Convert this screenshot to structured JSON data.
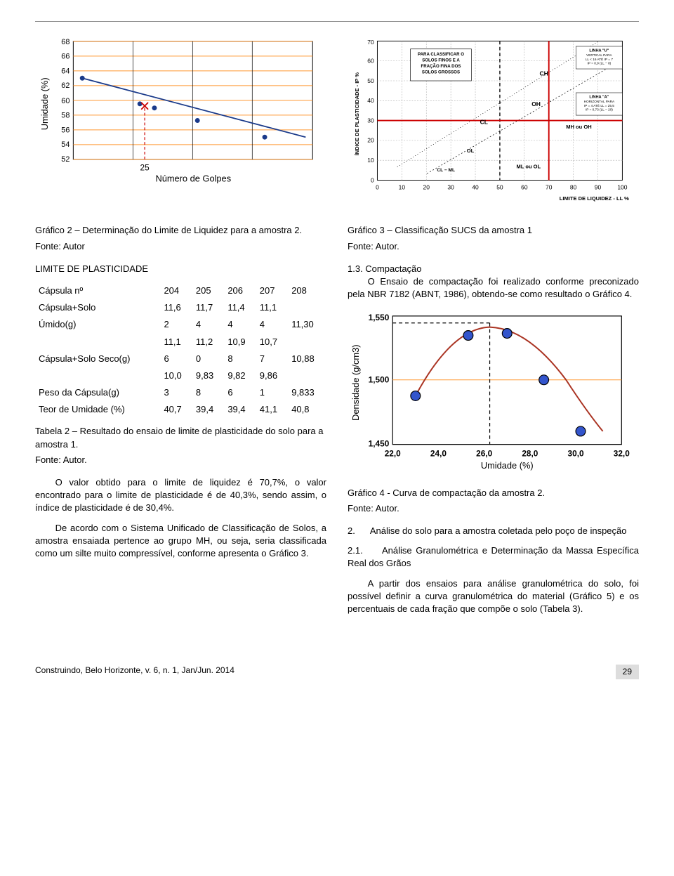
{
  "chart1": {
    "type": "scatter-line",
    "ylabel": "Umidade (%)",
    "xlabel": "Número de Golpes",
    "yticks": [
      52,
      54,
      56,
      58,
      60,
      62,
      64,
      66,
      68
    ],
    "xtick_label": "25",
    "ylim": [
      52,
      68
    ],
    "xlim": [
      10,
      60
    ],
    "points": [
      {
        "x": 12,
        "y": 63
      },
      {
        "x": 24,
        "y": 59.5
      },
      {
        "x": 27,
        "y": 59
      },
      {
        "x": 36,
        "y": 57.3
      },
      {
        "x": 50,
        "y": 55
      }
    ],
    "marker_x": 25,
    "marker_y": 59.3,
    "grid_color": "#ff9933",
    "point_color": "#1a3a8a",
    "line_color": "#1a3a8a",
    "marker_color": "#cc0000",
    "bg": "#ffffff"
  },
  "chart2": {
    "type": "plasticity-chart",
    "ylabel": "ÍNDICE DE PLASTICIDADE - IP %",
    "xlabel": "LIMITE DE LIQUIDEZ - LL %",
    "xlim": [
      0,
      100
    ],
    "ylim": [
      0,
      70
    ],
    "xticks": [
      0,
      10,
      20,
      30,
      40,
      50,
      60,
      70,
      80,
      90,
      100
    ],
    "yticks": [
      0,
      10,
      20,
      30,
      40,
      50,
      60,
      70
    ],
    "border_color": "#000000",
    "grid_dash": "2,2",
    "red_color": "#cc0000",
    "u_line": {
      "label": "LINHA \"U\"",
      "sub": "VERTICAL PARA\nLL < 16 ATÉ IP = 7\nIP = 0,9 (LL − 8)"
    },
    "a_line": {
      "label": "LINHA \"A\"",
      "sub": "HORIZONTAL PARA\nIP = 4 ATÉ LL = 25,5\nIP = 0,73 (LL − 20)"
    },
    "box_text": "PARA CLASSIFICAR O\nSOLOS FINOS E A\nFRAÇÃO FINA DOS\nSOLOS GROSSOS",
    "regions": {
      "CH": "CH",
      "CL": "CL",
      "OH": "OH",
      "OL": "OL",
      "ML_OL": "ML ou OL",
      "MH_OH": "MH ou OH",
      "CL_ML": "CL − ML"
    },
    "red_hline_y": 30,
    "red_vline_x": 70,
    "dash_vline_x": 50
  },
  "chart3": {
    "type": "compaction-curve",
    "ylabel": "Densidade (g/cm3)",
    "xlabel": "Umidade (%)",
    "xlim": [
      22,
      32
    ],
    "ylim": [
      1.45,
      1.55
    ],
    "xticks": [
      "22,0",
      "24,0",
      "26,0",
      "28,0",
      "30,0",
      "32,0"
    ],
    "yticks": [
      "1,450",
      "1,500",
      "1,550"
    ],
    "points": [
      {
        "x": 23.0,
        "y": 1.488
      },
      {
        "x": 25.3,
        "y": 1.535
      },
      {
        "x": 27.0,
        "y": 1.537
      },
      {
        "x": 28.6,
        "y": 1.5
      },
      {
        "x": 30.2,
        "y": 1.46
      }
    ],
    "dash_x": 26.2,
    "dash_y": 1.54,
    "grid_color": "#ff9933",
    "curve_color": "#aa3322",
    "point_fill": "#3355cc",
    "point_stroke": "#000000"
  },
  "table": {
    "title": "LIMITE DE PLASTICIDADE",
    "rows": [
      {
        "label": "Cápsula nº",
        "v": [
          "204",
          "205",
          "206",
          "207",
          "208"
        ]
      },
      {
        "label": "Cápsula+Solo",
        "v": [
          "11,6",
          "11,7",
          "11,4",
          "11,1",
          ""
        ]
      },
      {
        "label": "Úmido(g)",
        "v": [
          "2",
          "4",
          "4",
          "4",
          "11,30"
        ]
      },
      {
        "label": "",
        "v": [
          "11,1",
          "11,2",
          "10,9",
          "10,7",
          ""
        ]
      },
      {
        "label": "Cápsula+Solo Seco(g)",
        "v": [
          "6",
          "0",
          "8",
          "7",
          "10,88"
        ]
      },
      {
        "label": "",
        "v": [
          "10,0",
          "9,83",
          "9,82",
          "9,86",
          ""
        ]
      },
      {
        "label": "Peso da Cápsula(g)",
        "v": [
          "3",
          "8",
          "6",
          "1",
          "9,833"
        ]
      },
      {
        "label": "Teor de Umidade (%)",
        "v": [
          "40,7",
          "39,4",
          "39,4",
          "41,1",
          "40,8"
        ]
      }
    ]
  },
  "captions": {
    "g2": "Gráfico 2 – Determinação do Limite de Liquidez para a amostra 2.",
    "g2_fonte": "Fonte: Autor",
    "t2": "Tabela 2 – Resultado do ensaio de limite de plasticidade do solo para a amostra 1.",
    "t2_fonte": "Fonte: Autor.",
    "g3": "Gráfico 3 – Classificação SUCS da amostra 1",
    "g3_fonte": "Fonte: Autor.",
    "g4": "Gráfico 4 - Curva de compactação da amostra 2.",
    "g4_fonte": "Fonte: Autor."
  },
  "paras": {
    "p1": "O valor obtido para o limite de liquidez é 70,7%, o valor encontrado para o limite de plasticidade é de 40,3%, sendo assim, o índice de plasticidade é de 30,4%.",
    "p2": "De acordo com o Sistema Unificado de Classificação de Solos, a amostra ensaiada pertence ao grupo MH, ou seja, seria classificada como um silte muito compressível, conforme apresenta o Gráfico 3.",
    "s13_head": "1.3. Compactação",
    "s13_body": "O Ensaio de compactação foi realizado conforme preconizado pela NBR 7182 (ABNT, 1986), obtendo-se como resultado o Gráfico 4.",
    "s2_head": "2.",
    "s2_body": "Análise do solo para a amostra coletada pelo poço de inspeção",
    "s21_head": "2.1.",
    "s21_title": "Análise Granulométrica e Determinação da Massa Específica Real dos Grãos",
    "s21_body": "A partir dos ensaios para análise granulométrica do solo, foi possível definir a curva granulométrica do material (Gráfico 5) e os percentuais de cada fração que compõe o solo (Tabela 3)."
  },
  "footer": {
    "journal": "Construindo, Belo Horizonte, v. 6, n. 1, Jan/Jun. 2014",
    "page": "29"
  },
  "style": {
    "font_body": 13
  }
}
